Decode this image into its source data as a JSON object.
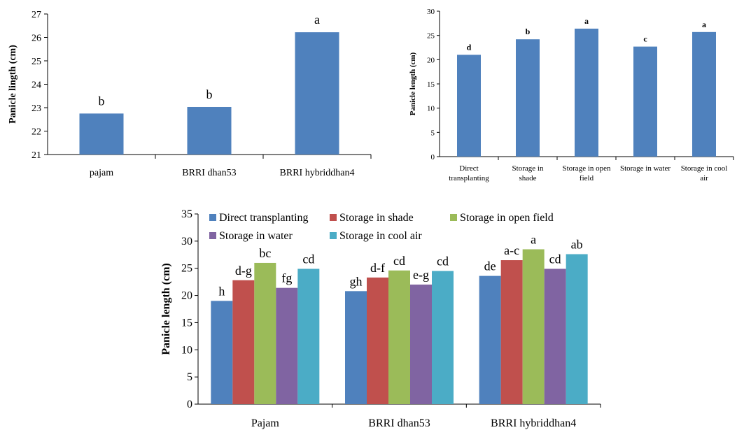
{
  "colors": {
    "blue": "#4F81BD",
    "red": "#C0504D",
    "green": "#9BBB59",
    "purple": "#8064A2",
    "cyan": "#4BACC6"
  },
  "chart_data": [
    {
      "type": "bar",
      "ylabel": "Panicle lingth (cm)",
      "xlabel": "",
      "ylim": [
        21,
        27
      ],
      "yticks": [
        21,
        22,
        23,
        24,
        25,
        26,
        27
      ],
      "categories": [
        "pajam",
        "BRRI dhan53",
        "BRRI hybriddhan4"
      ],
      "values": [
        22.75,
        23.03,
        26.22
      ],
      "letters": [
        "b",
        "b",
        "a"
      ],
      "grid": false
    },
    {
      "type": "bar",
      "ylabel": "Panicle length (cm)",
      "xlabel": "",
      "ylim": [
        0,
        30
      ],
      "yticks": [
        0,
        5,
        10,
        15,
        20,
        25,
        30
      ],
      "categories": [
        [
          "Direct",
          "transplanting"
        ],
        [
          "Storage in",
          "shade"
        ],
        [
          "Storage in open",
          "field"
        ],
        [
          "Storage in water"
        ],
        [
          "Storage in cool",
          "air"
        ]
      ],
      "values": [
        21.0,
        24.2,
        26.4,
        22.7,
        25.7
      ],
      "letters": [
        "d",
        "b",
        "a",
        "c",
        "a"
      ],
      "grid": false
    },
    {
      "type": "bar",
      "ylabel": "Panicle length (cm)",
      "xlabel": "",
      "ylim": [
        0,
        35
      ],
      "yticks": [
        0,
        5,
        10,
        15,
        20,
        25,
        30,
        35
      ],
      "categories": [
        "Pajam",
        "BRRI dhan53",
        "BRRI hybriddhan4"
      ],
      "legend_position": "top",
      "series": [
        {
          "name": "Direct transplanting",
          "color": "#4F81BD",
          "values": [
            19.0,
            20.8,
            23.6
          ],
          "letters": [
            "h",
            "gh",
            "de"
          ]
        },
        {
          "name": "Storage in shade",
          "color": "#C0504D",
          "values": [
            22.8,
            23.3,
            26.5
          ],
          "letters": [
            "d-g",
            "d-f",
            "a-c"
          ]
        },
        {
          "name": "Storage in open field",
          "color": "#9BBB59",
          "values": [
            26.0,
            24.6,
            28.5
          ],
          "letters": [
            "bc",
            "cd",
            "a"
          ]
        },
        {
          "name": "Storage in water",
          "color": "#8064A2",
          "values": [
            21.4,
            22.0,
            24.9
          ],
          "letters": [
            "fg",
            "e-g",
            "cd"
          ]
        },
        {
          "name": "Storage in cool air",
          "color": "#4BACC6",
          "values": [
            24.9,
            24.5,
            27.6
          ],
          "letters": [
            "cd",
            "cd",
            "ab"
          ]
        }
      ],
      "grid": false
    }
  ]
}
